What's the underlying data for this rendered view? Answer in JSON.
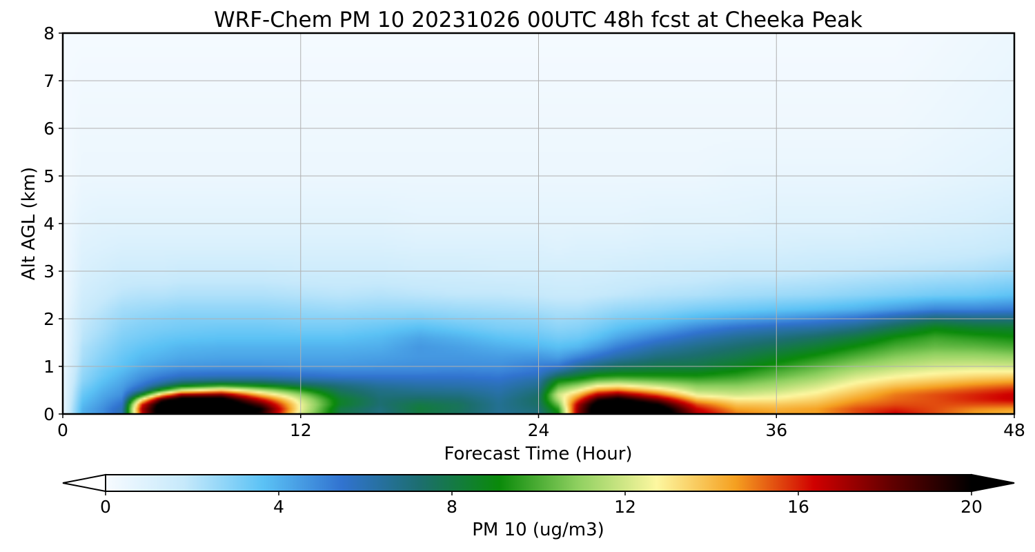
{
  "chart_data": {
    "type": "heatmap",
    "title": "WRF-Chem PM 10  20231026 00UTC 48h fcst at Cheeka Peak",
    "xlabel": "Forecast Time (Hour)",
    "ylabel": "Alt AGL (km)",
    "xlim": [
      0,
      48
    ],
    "ylim": [
      0,
      8
    ],
    "xticks": [
      0,
      12,
      24,
      36,
      48
    ],
    "yticks": [
      0,
      1,
      2,
      3,
      4,
      5,
      6,
      7,
      8
    ],
    "grid": true,
    "colorbar": {
      "label": "PM 10  (ug/m3)",
      "range": [
        0,
        20
      ],
      "ticks": [
        0,
        4,
        8,
        12,
        16,
        20
      ],
      "extend": "both",
      "colors": [
        "#f7fbff",
        "#c6e9fb",
        "#5bc2f5",
        "#3173d0",
        "#1c6e6e",
        "#0a8a0a",
        "#8fd060",
        "#fdf7a0",
        "#f5a020",
        "#d00000",
        "#600000",
        "#000000"
      ]
    },
    "x_hours": [
      0,
      1,
      2,
      3,
      4,
      5,
      6,
      8,
      10,
      12,
      14,
      16,
      18,
      20,
      22,
      24,
      25,
      26,
      27,
      28,
      30,
      32,
      34,
      36,
      38,
      40,
      42,
      44,
      46,
      48
    ],
    "y_km": [
      0,
      0.1,
      0.2,
      0.3,
      0.4,
      0.5,
      0.6,
      0.7,
      0.8,
      0.9,
      1,
      1.2,
      1.4,
      1.6,
      1.8,
      2,
      2.2,
      2.5,
      3,
      3.5,
      4,
      5,
      6,
      7,
      8
    ],
    "pm10_profiles": [
      [
        0.5,
        0.5,
        0.5,
        0.5,
        0.5,
        0.5,
        0.5,
        0.5,
        0.5,
        0.4,
        0.4,
        0.4,
        0.3,
        0.3,
        0.3,
        0.3,
        0.3,
        0.2,
        0.2,
        0.2,
        0.2,
        0.1,
        0.1,
        0.1,
        0.1
      ],
      [
        4.0,
        4.0,
        3.8,
        3.6,
        3.4,
        3.2,
        3.0,
        2.8,
        2.7,
        2.6,
        2.5,
        2.3,
        2.2,
        2.0,
        1.9,
        1.8,
        1.6,
        1.4,
        1.1,
        0.9,
        0.7,
        0.4,
        0.3,
        0.2,
        0.1
      ],
      [
        4.8,
        4.8,
        4.6,
        4.4,
        4.2,
        4.0,
        3.8,
        3.6,
        3.4,
        3.3,
        3.1,
        2.9,
        2.7,
        2.5,
        2.3,
        2.2,
        2.0,
        1.7,
        1.3,
        1.0,
        0.8,
        0.4,
        0.3,
        0.2,
        0.1
      ],
      [
        6.0,
        6.0,
        5.6,
        5.2,
        4.8,
        4.6,
        4.4,
        4.2,
        4.0,
        3.8,
        3.6,
        3.4,
        3.2,
        3.0,
        2.8,
        2.6,
        2.4,
        2.0,
        1.5,
        1.1,
        0.8,
        0.4,
        0.3,
        0.2,
        0.1
      ],
      [
        16.5,
        17.0,
        16.0,
        13.0,
        9.0,
        6.5,
        5.5,
        5.0,
        4.7,
        4.4,
        4.1,
        3.8,
        3.5,
        3.2,
        3.0,
        2.8,
        2.5,
        2.1,
        1.5,
        1.1,
        0.8,
        0.4,
        0.3,
        0.2,
        0.1
      ],
      [
        21.5,
        21.5,
        21.0,
        19.0,
        14.0,
        9.5,
        7.0,
        5.8,
        5.2,
        4.8,
        4.4,
        4.0,
        3.7,
        3.4,
        3.1,
        2.9,
        2.6,
        2.1,
        1.5,
        1.1,
        0.8,
        0.4,
        0.3,
        0.2,
        0.1
      ],
      [
        22.5,
        22.5,
        22.0,
        21.0,
        17.5,
        12.0,
        8.5,
        6.6,
        5.6,
        5.1,
        4.6,
        4.2,
        3.9,
        3.5,
        3.2,
        3.0,
        2.7,
        2.2,
        1.6,
        1.1,
        0.8,
        0.4,
        0.3,
        0.2,
        0.1
      ],
      [
        22.5,
        22.5,
        22.0,
        21.0,
        18.0,
        13.5,
        9.5,
        7.0,
        5.8,
        5.2,
        4.7,
        4.3,
        4.0,
        3.6,
        3.3,
        3.0,
        2.7,
        2.2,
        1.6,
        1.1,
        0.8,
        0.4,
        0.3,
        0.2,
        0.1
      ],
      [
        19.5,
        20.0,
        18.5,
        16.5,
        14.0,
        11.5,
        8.8,
        7.0,
        5.8,
        5.2,
        4.7,
        4.3,
        4.0,
        3.6,
        3.3,
        3.0,
        2.7,
        2.2,
        1.6,
        1.1,
        0.8,
        0.4,
        0.3,
        0.2,
        0.1
      ],
      [
        12.0,
        12.5,
        12.5,
        12.0,
        11.0,
        9.5,
        7.8,
        6.5,
        5.6,
        5.1,
        4.6,
        4.3,
        4.0,
        3.6,
        3.2,
        2.9,
        2.6,
        2.1,
        1.5,
        1.1,
        0.8,
        0.4,
        0.3,
        0.2,
        0.1
      ],
      [
        8.0,
        8.0,
        8.5,
        8.5,
        8.0,
        7.5,
        7.0,
        6.2,
        5.4,
        5.0,
        4.6,
        4.3,
        4.0,
        3.6,
        3.2,
        2.9,
        2.5,
        2.0,
        1.5,
        1.1,
        0.8,
        0.4,
        0.3,
        0.2,
        0.1
      ],
      [
        7.0,
        7.0,
        7.2,
        7.2,
        7.0,
        6.8,
        6.4,
        5.9,
        5.4,
        5.0,
        4.7,
        4.4,
        4.1,
        3.8,
        3.4,
        3.0,
        2.6,
        2.1,
        1.5,
        1.1,
        0.8,
        0.4,
        0.3,
        0.2,
        0.1
      ],
      [
        8.0,
        8.2,
        8.0,
        7.5,
        7.0,
        6.6,
        6.2,
        5.8,
        5.4,
        5.0,
        4.8,
        4.6,
        4.6,
        4.3,
        3.7,
        3.1,
        2.6,
        2.0,
        1.4,
        1.0,
        0.7,
        0.4,
        0.3,
        0.2,
        0.1
      ],
      [
        7.5,
        7.6,
        7.6,
        7.3,
        6.9,
        6.5,
        6.1,
        5.8,
        5.4,
        5.1,
        4.8,
        4.6,
        4.4,
        4.0,
        3.4,
        2.9,
        2.5,
        1.9,
        1.4,
        1.0,
        0.7,
        0.4,
        0.3,
        0.2,
        0.1
      ],
      [
        6.5,
        6.6,
        6.6,
        6.5,
        6.3,
        6.1,
        5.9,
        5.6,
        5.3,
        5.0,
        4.8,
        4.5,
        4.1,
        3.6,
        3.1,
        2.8,
        2.4,
        1.9,
        1.3,
        1.0,
        0.7,
        0.4,
        0.3,
        0.2,
        0.1
      ],
      [
        7.0,
        7.2,
        7.4,
        7.5,
        7.3,
        7.0,
        6.6,
        6.3,
        5.8,
        5.4,
        5.2,
        4.6,
        3.9,
        3.4,
        3.0,
        2.7,
        2.3,
        1.8,
        1.3,
        1.0,
        0.7,
        0.4,
        0.3,
        0.2,
        0.1
      ],
      [
        9.0,
        9.5,
        10.5,
        11.5,
        12.0,
        11.0,
        10.0,
        9.0,
        7.5,
        6.4,
        5.4,
        4.4,
        3.7,
        3.2,
        2.8,
        2.5,
        2.2,
        1.7,
        1.3,
        0.9,
        0.7,
        0.4,
        0.3,
        0.2,
        0.1
      ],
      [
        17.5,
        17.5,
        17.0,
        15.5,
        14.0,
        12.5,
        11.0,
        9.6,
        8.4,
        7.4,
        6.4,
        5.0,
        3.9,
        3.3,
        2.9,
        2.6,
        2.2,
        1.7,
        1.3,
        1.0,
        0.7,
        0.4,
        0.3,
        0.2,
        0.1
      ],
      [
        21.5,
        21.5,
        21.0,
        19.5,
        17.0,
        14.5,
        12.5,
        10.5,
        9.2,
        8.0,
        7.0,
        5.6,
        4.5,
        3.7,
        3.2,
        2.8,
        2.4,
        1.8,
        1.3,
        1.0,
        0.7,
        0.4,
        0.3,
        0.2,
        0.1
      ],
      [
        22.5,
        22.5,
        22.0,
        20.5,
        18.0,
        15.0,
        12.8,
        10.8,
        9.4,
        8.3,
        7.5,
        6.2,
        5.2,
        4.3,
        3.6,
        3.1,
        2.6,
        1.9,
        1.4,
        1.0,
        0.7,
        0.4,
        0.3,
        0.2,
        0.1
      ],
      [
        22.0,
        21.5,
        20.0,
        18.0,
        15.5,
        13.5,
        11.8,
        10.4,
        9.3,
        8.5,
        7.9,
        7.0,
        6.2,
        5.2,
        4.2,
        3.4,
        2.8,
        2.1,
        1.5,
        1.1,
        0.8,
        0.4,
        0.3,
        0.2,
        0.1
      ],
      [
        17.0,
        16.5,
        15.5,
        14.0,
        12.5,
        11.5,
        10.8,
        10.0,
        9.2,
        8.6,
        8.0,
        7.4,
        6.8,
        6.0,
        5.0,
        3.9,
        3.1,
        2.2,
        1.6,
        1.1,
        0.8,
        0.4,
        0.3,
        0.2,
        0.1
      ],
      [
        15.0,
        14.5,
        13.8,
        13.0,
        12.0,
        11.4,
        10.8,
        10.2,
        9.6,
        9.1,
        8.6,
        7.9,
        7.3,
        6.6,
        5.6,
        4.3,
        3.3,
        2.4,
        1.7,
        1.2,
        0.8,
        0.5,
        0.3,
        0.2,
        0.1
      ],
      [
        14.5,
        14.2,
        13.7,
        13.0,
        12.4,
        11.8,
        11.3,
        10.8,
        10.3,
        9.9,
        9.4,
        8.6,
        7.8,
        7.0,
        6.0,
        4.6,
        3.5,
        2.5,
        1.7,
        1.2,
        0.9,
        0.5,
        0.3,
        0.2,
        0.1
      ],
      [
        14.5,
        14.5,
        14.0,
        13.5,
        13.0,
        12.5,
        12.0,
        11.5,
        11.0,
        10.6,
        10.2,
        9.3,
        8.4,
        7.5,
        6.3,
        5.0,
        3.7,
        2.6,
        1.8,
        1.3,
        0.9,
        0.5,
        0.3,
        0.2,
        0.1
      ],
      [
        15.5,
        15.5,
        15.0,
        14.5,
        14.0,
        13.5,
        13.0,
        12.5,
        12.0,
        11.5,
        11.0,
        10.1,
        9.2,
        8.2,
        6.9,
        5.5,
        4.0,
        2.8,
        1.9,
        1.3,
        0.9,
        0.5,
        0.3,
        0.2,
        0.1
      ],
      [
        16.5,
        16.0,
        15.5,
        15.2,
        15.0,
        14.5,
        13.8,
        13.2,
        12.6,
        12.1,
        11.6,
        10.8,
        10.0,
        9.2,
        7.9,
        6.4,
        4.5,
        3.0,
        2.0,
        1.4,
        1.0,
        0.5,
        0.3,
        0.2,
        0.1
      ],
      [
        15.5,
        15.5,
        15.5,
        15.5,
        15.5,
        15.0,
        14.3,
        13.6,
        13.0,
        12.5,
        12.0,
        11.2,
        10.4,
        9.8,
        8.9,
        7.2,
        5.0,
        3.2,
        2.1,
        1.5,
        1.1,
        0.6,
        0.4,
        0.3,
        0.2
      ],
      [
        14.5,
        14.8,
        15.5,
        16.0,
        16.0,
        15.5,
        14.8,
        14.0,
        13.3,
        12.7,
        12.1,
        11.2,
        10.3,
        9.5,
        8.5,
        7.0,
        5.0,
        3.3,
        2.2,
        1.6,
        1.2,
        0.7,
        0.5,
        0.4,
        0.3
      ],
      [
        14.0,
        14.5,
        15.5,
        16.5,
        16.5,
        16.0,
        15.2,
        14.3,
        13.5,
        12.7,
        12.0,
        11.0,
        10.0,
        9.2,
        8.4,
        7.0,
        5.2,
        3.6,
        2.4,
        1.8,
        1.4,
        0.8,
        0.6,
        0.5,
        0.4
      ]
    ]
  }
}
